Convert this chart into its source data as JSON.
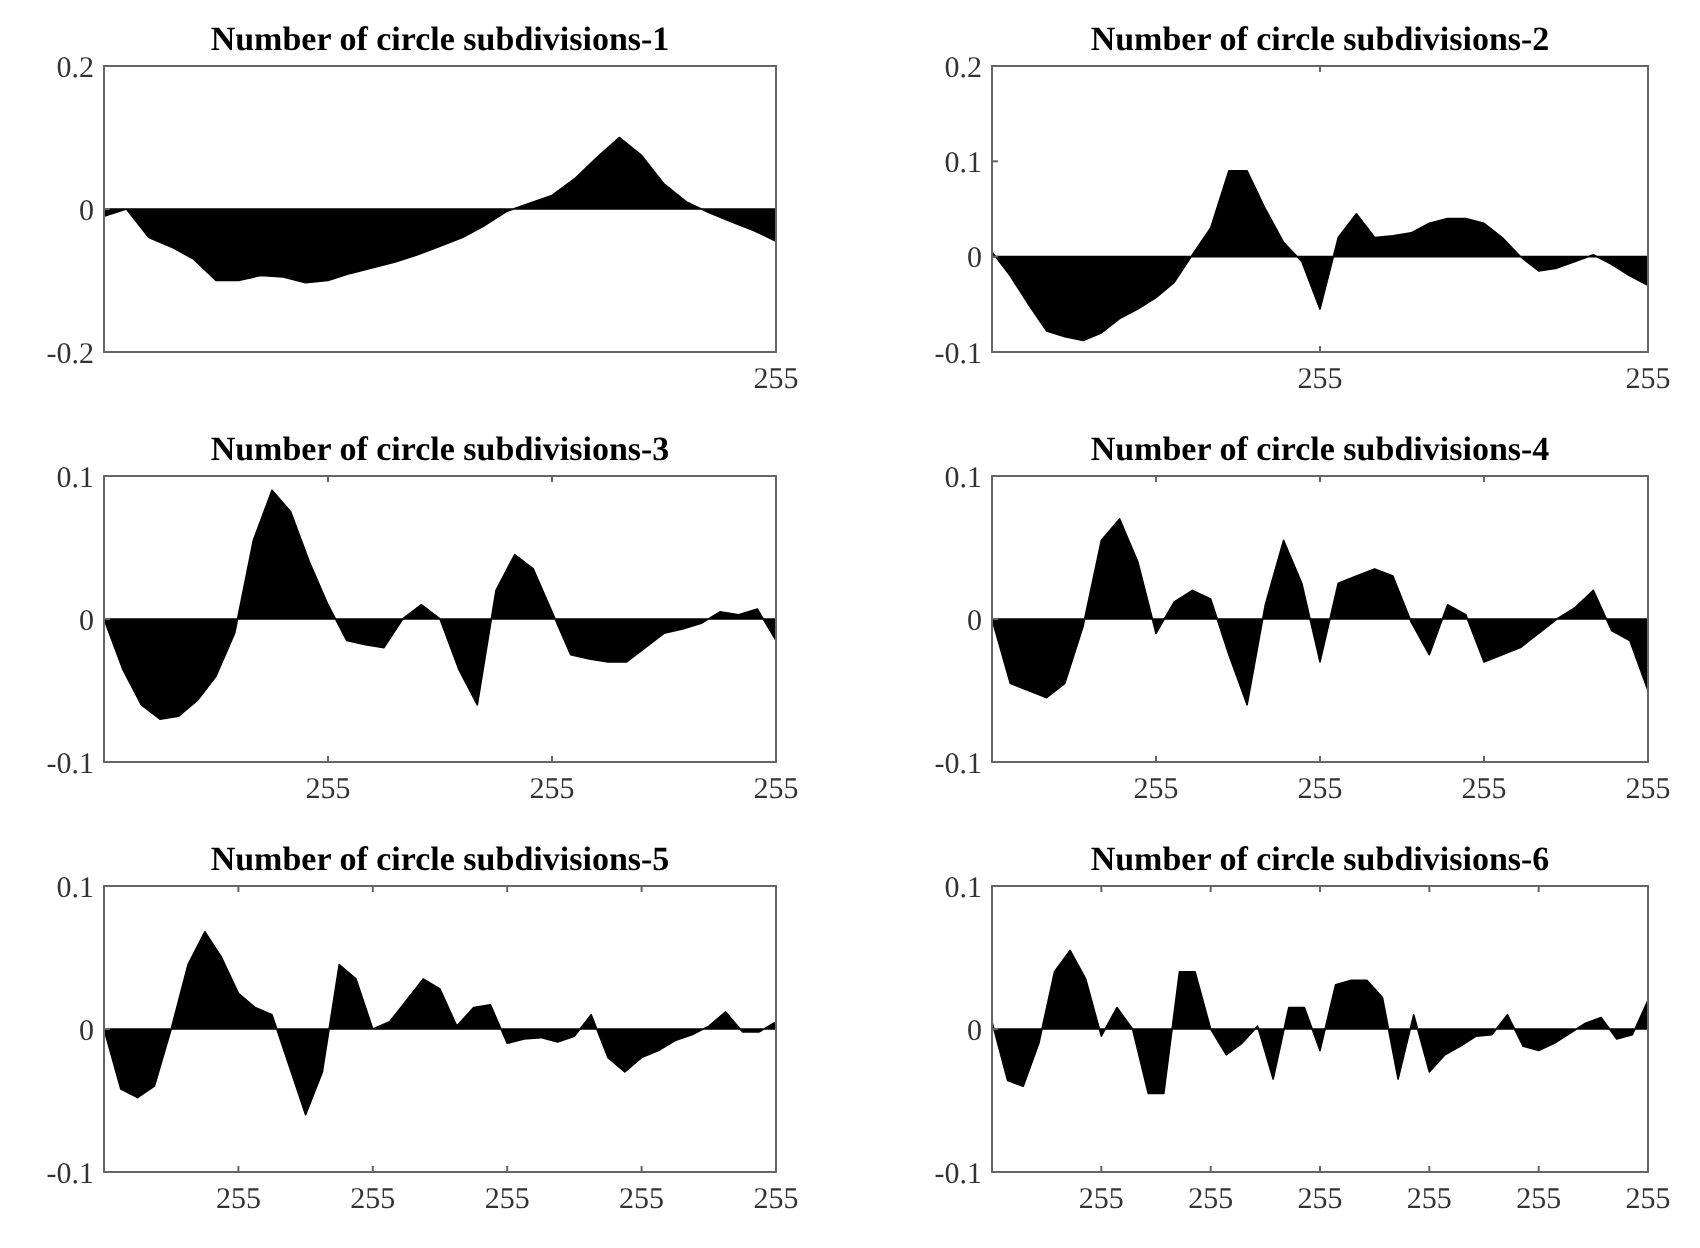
{
  "chart_data": [
    {
      "type": "area",
      "title": "Number of circle subdivisions-1",
      "color": "#000000",
      "ylim": [
        -0.2,
        0.2
      ],
      "yticks": [
        -0.2,
        0,
        0.2
      ],
      "categories": [
        null,
        null,
        null,
        null,
        null,
        null,
        null,
        null,
        null,
        null,
        null,
        null,
        null,
        null,
        null,
        null,
        null,
        null,
        null,
        null,
        null,
        null,
        null,
        null,
        null,
        null,
        null,
        null,
        null,
        null,
        "255"
      ],
      "values": [
        -0.01,
        0,
        -0.04,
        -0.053,
        -0.07,
        -0.1,
        -0.1,
        -0.093,
        -0.095,
        -0.103,
        -0.1,
        -0.09,
        -0.082,
        -0.074,
        -0.064,
        -0.052,
        -0.04,
        -0.023,
        -0.003,
        0.008,
        0.019,
        0.042,
        0.072,
        0.1,
        0.075,
        0.035,
        0.01,
        -0.005,
        -0.018,
        -0.03,
        -0.045
      ]
    },
    {
      "type": "area",
      "title": "Number of circle subdivisions-2",
      "color": "#000000",
      "ylim": [
        -0.1,
        0.2
      ],
      "yticks": [
        -0.1,
        0,
        0.1,
        0.2
      ],
      "categories": [
        null,
        null,
        null,
        null,
        null,
        null,
        null,
        null,
        null,
        null,
        null,
        null,
        null,
        null,
        null,
        null,
        null,
        null,
        "255",
        null,
        null,
        null,
        null,
        null,
        null,
        null,
        null,
        null,
        null,
        null,
        null,
        null,
        null,
        null,
        null,
        null,
        "255"
      ],
      "values": [
        0.005,
        -0.02,
        -0.05,
        -0.078,
        -0.084,
        -0.088,
        -0.08,
        -0.065,
        -0.055,
        -0.043,
        -0.027,
        0.002,
        0.03,
        0.09,
        0.09,
        0.05,
        0.015,
        -0.005,
        -0.055,
        0.02,
        0.045,
        0.02,
        0.022,
        0.025,
        0.035,
        0.04,
        0.04,
        0.035,
        0.02,
        0,
        -0.015,
        -0.012,
        -0.005,
        0.002,
        -0.008,
        -0.02,
        -0.03
      ]
    },
    {
      "type": "area",
      "title": "Number of circle subdivisions-3",
      "color": "#000000",
      "ylim": [
        -0.1,
        0.1
      ],
      "yticks": [
        -0.1,
        0,
        0.1
      ],
      "categories": [
        null,
        null,
        null,
        null,
        null,
        null,
        null,
        null,
        null,
        null,
        null,
        null,
        "255",
        null,
        null,
        null,
        null,
        null,
        null,
        null,
        null,
        null,
        null,
        null,
        "255",
        null,
        null,
        null,
        null,
        null,
        null,
        null,
        null,
        null,
        null,
        null,
        "255"
      ],
      "values": [
        0,
        -0.035,
        -0.06,
        -0.07,
        -0.068,
        -0.057,
        -0.04,
        -0.01,
        0.055,
        0.09,
        0.075,
        0.04,
        0.01,
        -0.015,
        -0.018,
        -0.02,
        0,
        0.01,
        0,
        -0.035,
        -0.06,
        0.02,
        0.045,
        0.035,
        0.005,
        -0.025,
        -0.028,
        -0.03,
        -0.03,
        -0.02,
        -0.01,
        -0.007,
        -0.003,
        0.005,
        0.003,
        0.007,
        -0.015
      ]
    },
    {
      "type": "area",
      "title": "Number of circle subdivisions-4",
      "color": "#000000",
      "ylim": [
        -0.1,
        0.1
      ],
      "yticks": [
        -0.1,
        0,
        0.1
      ],
      "categories": [
        null,
        null,
        null,
        null,
        null,
        null,
        null,
        null,
        null,
        "255",
        null,
        null,
        null,
        null,
        null,
        null,
        null,
        null,
        "255",
        null,
        null,
        null,
        null,
        null,
        null,
        null,
        null,
        "255",
        null,
        null,
        null,
        null,
        null,
        null,
        null,
        null,
        "255"
      ],
      "values": [
        0,
        -0.045,
        -0.05,
        -0.055,
        -0.045,
        -0.005,
        0.055,
        0.07,
        0.04,
        -0.01,
        0.012,
        0.02,
        0.014,
        -0.025,
        -0.06,
        0.01,
        0.055,
        0.025,
        -0.03,
        0.025,
        0.03,
        0.035,
        0.03,
        -0.002,
        -0.025,
        0.01,
        0.003,
        -0.03,
        -0.025,
        -0.02,
        -0.01,
        0,
        0.008,
        0.02,
        -0.008,
        -0.015,
        -0.05
      ]
    },
    {
      "type": "area",
      "title": "Number of circle subdivisions-5",
      "color": "#000000",
      "ylim": [
        -0.1,
        0.1
      ],
      "yticks": [
        -0.1,
        0,
        0.1
      ],
      "categories": [
        null,
        null,
        null,
        null,
        null,
        null,
        null,
        null,
        "255",
        null,
        null,
        null,
        null,
        null,
        null,
        null,
        "255",
        null,
        null,
        null,
        null,
        null,
        null,
        null,
        "255",
        null,
        null,
        null,
        null,
        null,
        null,
        null,
        "255",
        null,
        null,
        null,
        null,
        null,
        null,
        null,
        "255"
      ],
      "values": [
        0,
        -0.042,
        -0.048,
        -0.04,
        0,
        0.045,
        0.068,
        0.05,
        0.025,
        0.015,
        0.01,
        -0.025,
        -0.06,
        -0.03,
        0.045,
        0.035,
        0,
        0.005,
        0.02,
        0.035,
        0.028,
        0.002,
        0.015,
        0.017,
        -0.01,
        -0.007,
        -0.006,
        -0.009,
        -0.005,
        0.01,
        -0.02,
        -0.03,
        -0.02,
        -0.015,
        -0.008,
        -0.004,
        0.002,
        0.012,
        -0.002,
        -0.002,
        0.005
      ]
    },
    {
      "type": "area",
      "title": "Number of circle subdivisions-6",
      "color": "#000000",
      "ylim": [
        -0.1,
        0.1
      ],
      "yticks": [
        -0.1,
        0,
        0.1
      ],
      "categories": [
        null,
        null,
        null,
        null,
        null,
        null,
        null,
        "255",
        null,
        null,
        null,
        null,
        null,
        null,
        "255",
        null,
        null,
        null,
        null,
        null,
        null,
        "255",
        null,
        null,
        null,
        null,
        null,
        null,
        "255",
        null,
        null,
        null,
        null,
        null,
        null,
        "255",
        null,
        null,
        null,
        null,
        null,
        null,
        "255"
      ],
      "values": [
        0.005,
        -0.036,
        -0.04,
        -0.01,
        0.04,
        0.055,
        0.035,
        -0.005,
        0.015,
        0,
        -0.045,
        -0.045,
        0.04,
        0.04,
        0,
        -0.018,
        -0.01,
        0.002,
        -0.035,
        0.015,
        0.015,
        -0.015,
        0.031,
        0.034,
        0.034,
        0.022,
        -0.035,
        0.01,
        -0.03,
        -0.018,
        -0.012,
        -0.005,
        -0.004,
        0.01,
        -0.012,
        -0.015,
        -0.01,
        -0.003,
        0.004,
        0.008,
        -0.007,
        -0.004,
        0.02
      ]
    }
  ]
}
